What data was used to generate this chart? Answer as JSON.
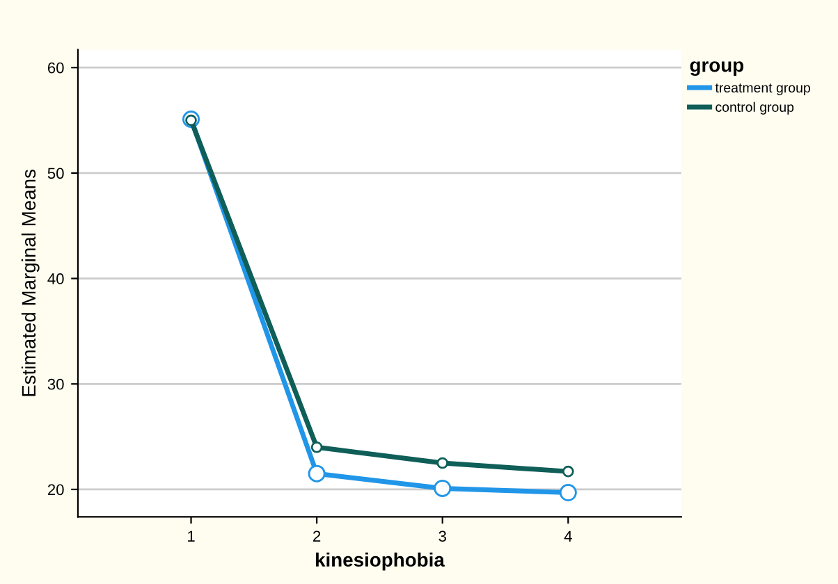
{
  "chart_data": {
    "type": "line",
    "xlabel": "kinesiophobia",
    "ylabel": "Estimated Marginal Means",
    "legend_title": "group",
    "categories": [
      "1",
      "2",
      "3",
      "4"
    ],
    "series": [
      {
        "name": "treatment group",
        "color": "#2196e8",
        "values": [
          55.1,
          21.5,
          20.1,
          19.7
        ]
      },
      {
        "name": "control group",
        "color": "#0f5e58",
        "values": [
          55.0,
          24.0,
          22.5,
          21.7
        ]
      }
    ],
    "ylim": [
      17.4,
      61.7
    ],
    "yticks": [
      20,
      30,
      40,
      50,
      60
    ],
    "grid": "y",
    "legend": "top right",
    "marker": "circle",
    "line_style": "solid"
  }
}
